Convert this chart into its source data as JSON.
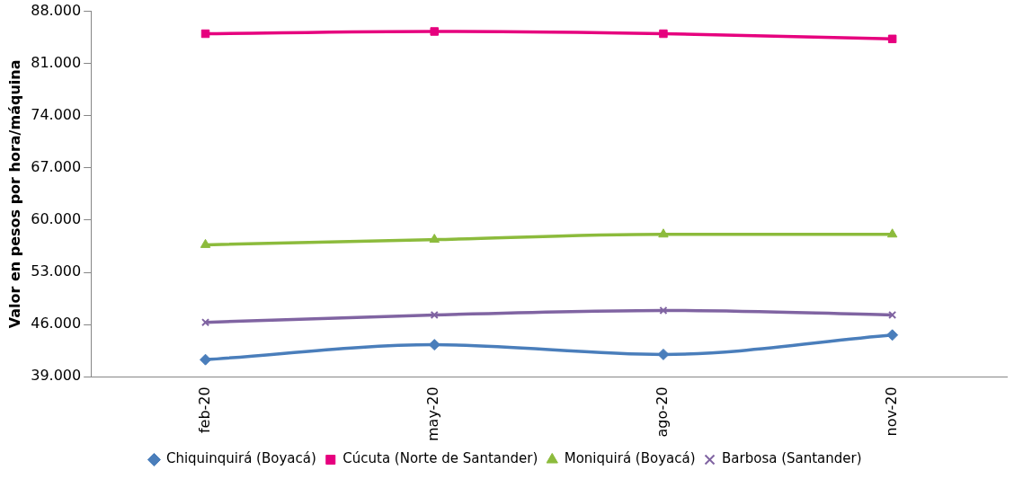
{
  "chart_data": {
    "type": "line",
    "ylabel": "Valor en pesos por hora/máquina",
    "categories": [
      "feb-20",
      "may-20",
      "ago-20",
      "nov-20"
    ],
    "series": [
      {
        "name": "Chiquinquirá (Boyacá)",
        "color": "#4a7ebb",
        "marker": "diamond",
        "values": [
          41300,
          43300,
          42000,
          44600
        ]
      },
      {
        "name": "Cúcuta (Norte de Santander)",
        "color": "#e6007e",
        "marker": "square",
        "values": [
          85000,
          85300,
          85000,
          84300
        ]
      },
      {
        "name": "Moniquirá (Boyacá)",
        "color": "#8cbb3c",
        "marker": "triangle",
        "values": [
          56700,
          57400,
          58100,
          58100
        ]
      },
      {
        "name": "Barbosa (Santander)",
        "color": "#8064a2",
        "marker": "cross",
        "values": [
          46300,
          47300,
          47900,
          47300
        ]
      }
    ],
    "ylim": [
      39000,
      88000
    ],
    "yticks": [
      {
        "value": 39000,
        "label": "39.000"
      },
      {
        "value": 46000,
        "label": "46.000"
      },
      {
        "value": 53000,
        "label": "53.000"
      },
      {
        "value": 60000,
        "label": "60.000"
      },
      {
        "value": 67000,
        "label": "67.000"
      },
      {
        "value": 74000,
        "label": "74.000"
      },
      {
        "value": 81000,
        "label": "81.000"
      },
      {
        "value": 88000,
        "label": "88.000"
      }
    ],
    "grid": false,
    "legend": "bottom"
  }
}
